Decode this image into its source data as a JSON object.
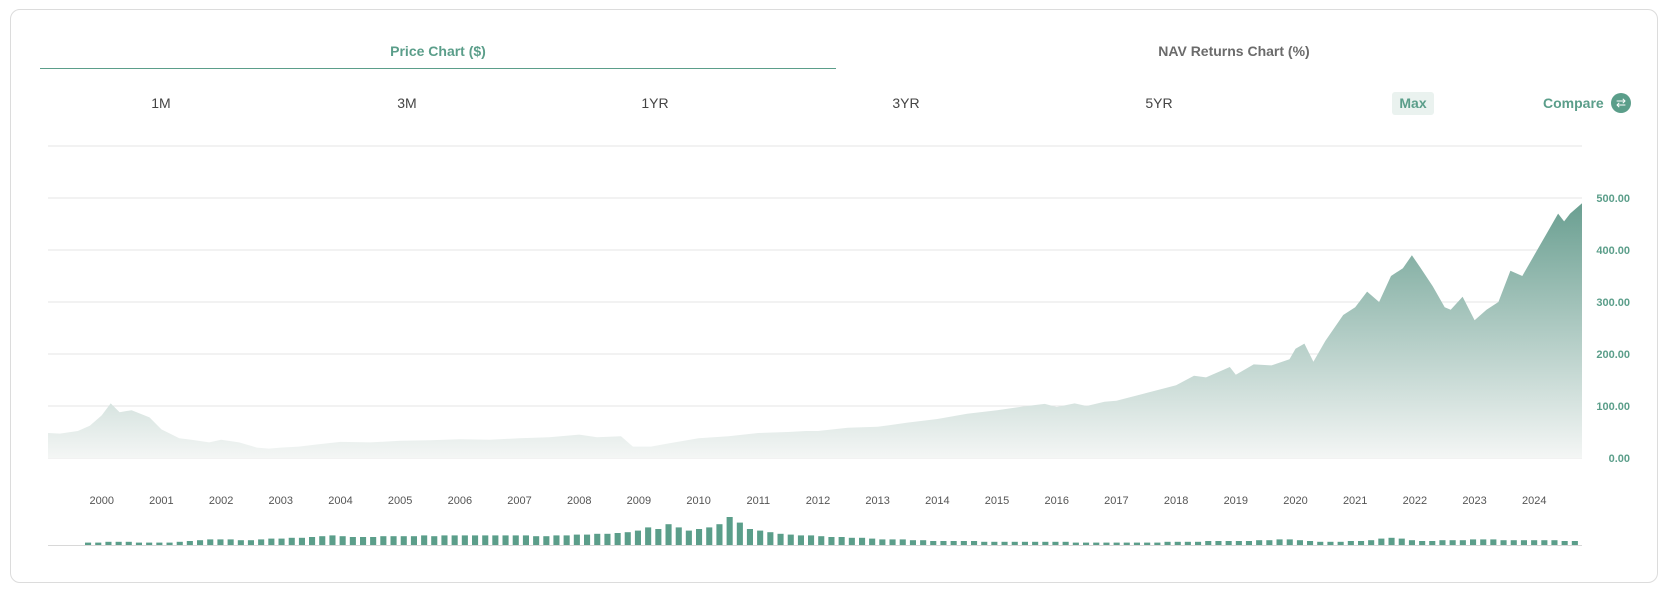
{
  "tabs": {
    "price": "Price Chart ($)",
    "nav": "NAV Returns Chart (%)"
  },
  "ranges": [
    "1M",
    "3M",
    "1YR",
    "3YR",
    "5YR"
  ],
  "active_range": "Max",
  "compare": {
    "label": "Compare",
    "icon": "swap-arrows-icon"
  },
  "colors": {
    "accent": "#5b9e8a",
    "area_top": "#6a9f91",
    "area_bottom": "#f4f6f5",
    "grid": "#e6e6e6"
  },
  "chart_data": {
    "type": "area",
    "ylim": [
      0,
      600
    ],
    "y_ticks": [
      0,
      100,
      200,
      300,
      400,
      500
    ],
    "y_tick_labels": [
      "0.00",
      "100.00",
      "200.00",
      "300.00",
      "400.00",
      "500.00"
    ],
    "x_range": [
      1999.1,
      2024.8
    ],
    "x_tick_labels": [
      "2000",
      "2001",
      "2002",
      "2003",
      "2004",
      "2005",
      "2006",
      "2007",
      "2008",
      "2009",
      "2010",
      "2011",
      "2012",
      "2013",
      "2014",
      "2015",
      "2016",
      "2017",
      "2018",
      "2019",
      "2020",
      "2021",
      "2022",
      "2023",
      "2024"
    ],
    "grid": true,
    "series": [
      {
        "x": [
          1999.1,
          1999.3,
          1999.6,
          1999.8,
          2000.0,
          2000.15,
          2000.3,
          2000.5,
          2000.8,
          2001.0,
          2001.3,
          2001.5,
          2001.8,
          2002.0,
          2002.3,
          2002.6,
          2002.8,
          2003.0,
          2003.3,
          2003.6,
          2004.0,
          2004.5,
          2005.0,
          2005.5,
          2006.0,
          2006.5,
          2007.0,
          2007.5,
          2008.0,
          2008.3,
          2008.7,
          2008.9,
          2009.2,
          2009.5,
          2010.0,
          2010.5,
          2011.0,
          2011.5,
          2011.8,
          2012.0,
          2012.5,
          2013.0,
          2013.5,
          2014.0,
          2014.5,
          2015.0,
          2015.5,
          2015.8,
          2016.0,
          2016.3,
          2016.5,
          2016.8,
          2017.0,
          2017.5,
          2018.0,
          2018.3,
          2018.5,
          2018.8,
          2018.9,
          2019.0,
          2019.3,
          2019.6,
          2019.9,
          2020.0,
          2020.15,
          2020.3,
          2020.5,
          2020.8,
          2021.0,
          2021.2,
          2021.4,
          2021.6,
          2021.8,
          2021.95,
          2022.1,
          2022.3,
          2022.5,
          2022.6,
          2022.8,
          2023.0,
          2023.2,
          2023.4,
          2023.6,
          2023.8,
          2024.0,
          2024.2,
          2024.4,
          2024.5,
          2024.6,
          2024.8
        ],
        "values": [
          48,
          47,
          52,
          62,
          82,
          105,
          88,
          92,
          78,
          55,
          38,
          35,
          30,
          35,
          30,
          20,
          18,
          20,
          22,
          26,
          31,
          30,
          33,
          34,
          36,
          35,
          38,
          40,
          45,
          40,
          42,
          22,
          22,
          28,
          38,
          42,
          48,
          50,
          52,
          52,
          58,
          60,
          68,
          75,
          85,
          92,
          100,
          104,
          98,
          105,
          100,
          108,
          110,
          125,
          140,
          158,
          155,
          170,
          175,
          160,
          180,
          178,
          190,
          210,
          220,
          185,
          225,
          275,
          290,
          320,
          300,
          350,
          365,
          390,
          365,
          330,
          290,
          285,
          310,
          265,
          285,
          300,
          360,
          350,
          390,
          430,
          470,
          455,
          470,
          490
        ]
      }
    ],
    "volume_values": [
      3,
      3,
      4,
      4,
      4,
      3,
      3,
      3,
      3,
      4,
      5,
      6,
      7,
      7,
      7,
      6,
      6,
      7,
      8,
      8,
      9,
      9,
      10,
      11,
      12,
      11,
      10,
      10,
      10,
      11,
      11,
      11,
      11,
      12,
      11,
      12,
      12,
      12,
      12,
      12,
      12,
      12,
      12,
      12,
      11,
      11,
      12,
      12,
      13,
      13,
      14,
      14,
      15,
      16,
      18,
      22,
      20,
      26,
      22,
      18,
      20,
      22,
      26,
      35,
      28,
      20,
      18,
      16,
      14,
      13,
      12,
      12,
      11,
      10,
      10,
      9,
      9,
      8,
      7,
      7,
      7,
      6,
      6,
      5,
      5,
      5,
      5,
      5,
      4,
      4,
      4,
      4,
      4,
      4,
      4,
      4,
      4,
      3,
      3,
      3,
      3,
      3,
      3,
      3,
      3,
      3,
      4,
      4,
      4,
      4,
      5,
      5,
      5,
      5,
      5,
      6,
      6,
      7,
      7,
      6,
      5,
      4,
      4,
      4,
      5,
      5,
      6,
      8,
      9,
      8,
      6,
      5,
      5,
      6,
      6,
      6,
      7,
      7,
      7,
      6,
      6,
      6,
      6,
      6,
      6,
      5,
      5
    ]
  }
}
